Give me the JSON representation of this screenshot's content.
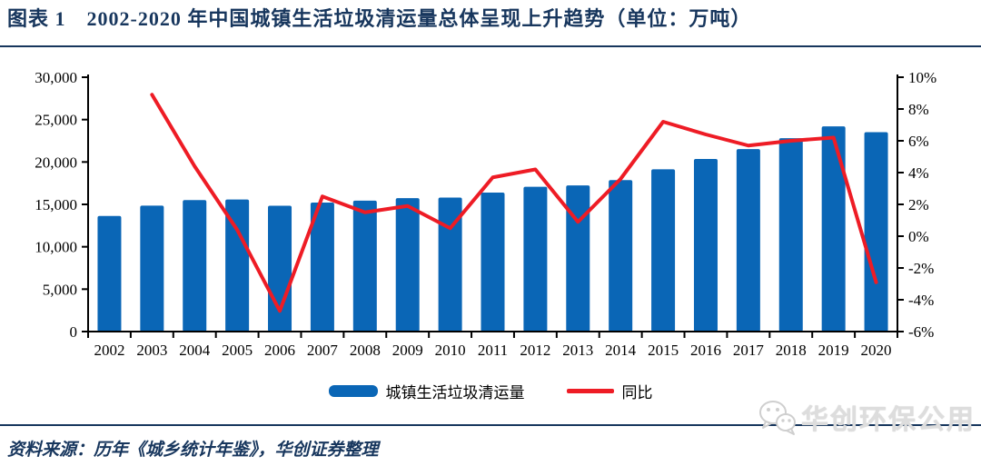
{
  "header": {
    "title": "图表 1　2002-2020 年中国城镇生活垃圾清运量总体呈现上升趋势（单位：万吨）"
  },
  "chart_data": {
    "type": "combo-bar-line",
    "title": "2002-2020 年中国城镇生活垃圾清运量总体呈现上升趋势",
    "unit": "万吨",
    "grid": false,
    "legend_position": "bottom",
    "categories": [
      "2002",
      "2003",
      "2004",
      "2005",
      "2006",
      "2007",
      "2008",
      "2009",
      "2010",
      "2011",
      "2012",
      "2013",
      "2014",
      "2015",
      "2016",
      "2017",
      "2018",
      "2019",
      "2020"
    ],
    "series": [
      {
        "name": "城镇生活垃圾清运量",
        "type": "bar",
        "axis": "left",
        "color": "#0a66b6",
        "values": [
          13638,
          14857,
          15509,
          15577,
          14841,
          15215,
          15438,
          15734,
          15805,
          16395,
          17081,
          17239,
          17860,
          19142,
          20362,
          21521,
          22802,
          24206,
          23512
        ]
      },
      {
        "name": "同比",
        "type": "line",
        "axis": "right",
        "color": "#ee1c25",
        "values": [
          null,
          8.9,
          4.4,
          0.4,
          -4.7,
          2.5,
          1.5,
          1.9,
          0.5,
          3.7,
          4.2,
          0.9,
          3.6,
          7.2,
          6.4,
          5.7,
          6.0,
          6.2,
          -2.9
        ]
      }
    ],
    "left_axis": {
      "min": 0,
      "max": 30000,
      "step": 5000,
      "tick_labels": [
        "30,000",
        "25,000",
        "20,000",
        "15,000",
        "10,000",
        "5,000",
        "0"
      ]
    },
    "right_axis": {
      "min": -6,
      "max": 10,
      "step": 2,
      "tick_labels": [
        "10%",
        "8%",
        "6%",
        "4%",
        "2%",
        "0%",
        "-2%",
        "-4%",
        "-6%"
      ]
    }
  },
  "watermark": {
    "text": "华创环保公用",
    "icon": "wechat-icon"
  },
  "footer": {
    "source": "资料来源：历年《城乡统计年鉴》，华创证券整理"
  },
  "colors": {
    "accent_navy": "#17365d",
    "bar_blue": "#0a66b6",
    "line_red": "#ee1c25",
    "watermark_gray": "#dddddd"
  }
}
